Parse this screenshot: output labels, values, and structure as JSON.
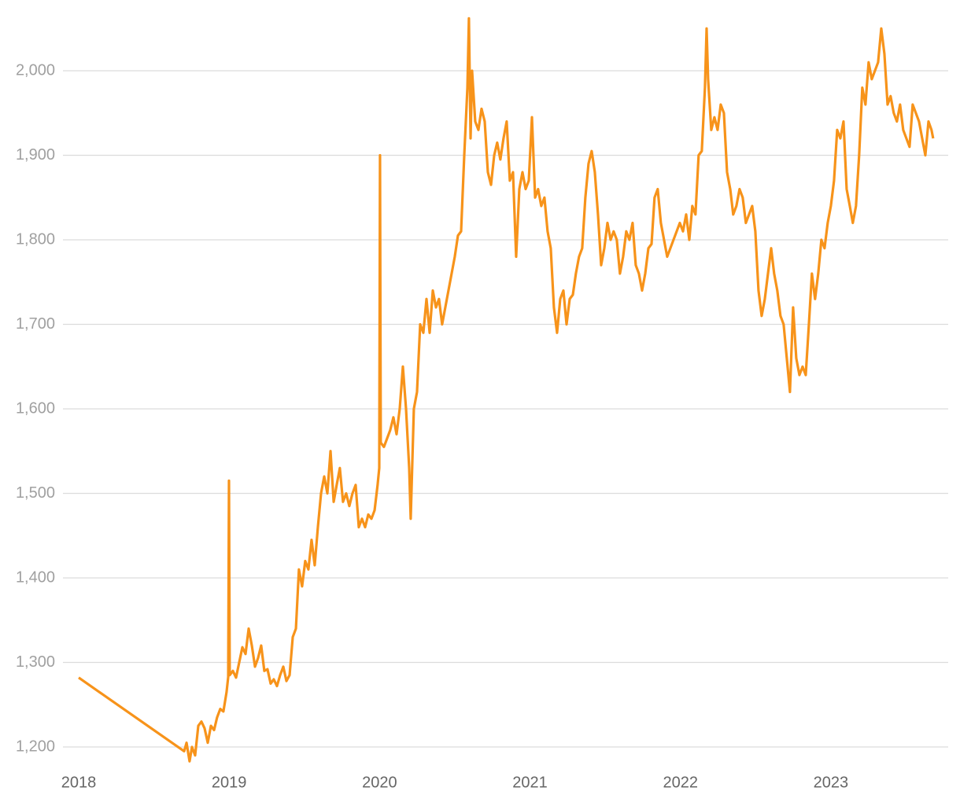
{
  "chart_data": {
    "type": "line",
    "x": [
      2018.0,
      2018.701,
      2018.717,
      2018.737,
      2018.753,
      2018.774,
      2018.795,
      2018.816,
      2018.837,
      2018.858,
      2018.879,
      2018.9,
      2018.92,
      2018.941,
      2018.962,
      2018.983,
      2018.994,
      2018.999,
      2019.004,
      2019.025,
      2019.046,
      2019.067,
      2019.088,
      2019.109,
      2019.13,
      2019.151,
      2019.172,
      2019.192,
      2019.213,
      2019.234,
      2019.255,
      2019.276,
      2019.297,
      2019.318,
      2019.339,
      2019.36,
      2019.381,
      2019.402,
      2019.423,
      2019.444,
      2019.464,
      2019.485,
      2019.506,
      2019.527,
      2019.548,
      2019.569,
      2019.59,
      2019.611,
      2019.632,
      2019.653,
      2019.674,
      2019.695,
      2019.715,
      2019.736,
      2019.757,
      2019.778,
      2019.799,
      2019.82,
      2019.841,
      2019.862,
      2019.883,
      2019.904,
      2019.925,
      2019.946,
      2019.967,
      2019.987,
      2019.998,
      2020.003,
      2020.008,
      2020.029,
      2020.05,
      2020.071,
      2020.092,
      2020.113,
      2020.134,
      2020.155,
      2020.176,
      2020.197,
      2020.207,
      2020.228,
      2020.249,
      2020.27,
      2020.291,
      2020.312,
      2020.333,
      2020.354,
      2020.375,
      2020.395,
      2020.416,
      2020.437,
      2020.458,
      2020.479,
      2020.5,
      2020.521,
      2020.542,
      2020.563,
      2020.584,
      2020.594,
      2020.605,
      2020.615,
      2020.636,
      2020.657,
      2020.678,
      2020.699,
      2020.72,
      2020.741,
      2020.762,
      2020.782,
      2020.803,
      2020.824,
      2020.845,
      2020.866,
      2020.887,
      2020.908,
      2020.929,
      2020.95,
      2020.971,
      2020.992,
      2021.013,
      2021.034,
      2021.054,
      2021.075,
      2021.096,
      2021.117,
      2021.138,
      2021.159,
      2021.18,
      2021.201,
      2021.222,
      2021.243,
      2021.264,
      2021.285,
      2021.305,
      2021.326,
      2021.347,
      2021.368,
      2021.389,
      2021.41,
      2021.431,
      2021.452,
      2021.473,
      2021.494,
      2021.515,
      2021.536,
      2021.556,
      2021.577,
      2021.598,
      2021.619,
      2021.64,
      2021.661,
      2021.682,
      2021.703,
      2021.724,
      2021.745,
      2021.766,
      2021.787,
      2021.808,
      2021.828,
      2021.849,
      2021.87,
      2021.891,
      2021.912,
      2021.933,
      2021.954,
      2021.975,
      2021.996,
      2022.017,
      2022.038,
      2022.059,
      2022.079,
      2022.1,
      2022.121,
      2022.142,
      2022.163,
      2022.174,
      2022.184,
      2022.205,
      2022.226,
      2022.247,
      2022.268,
      2022.289,
      2022.31,
      2022.331,
      2022.351,
      2022.372,
      2022.393,
      2022.414,
      2022.435,
      2022.456,
      2022.477,
      2022.498,
      2022.519,
      2022.54,
      2022.561,
      2022.582,
      2022.603,
      2022.623,
      2022.644,
      2022.665,
      2022.686,
      2022.707,
      2022.728,
      2022.749,
      2022.77,
      2022.791,
      2022.812,
      2022.833,
      2022.854,
      2022.874,
      2022.895,
      2022.916,
      2022.937,
      2022.958,
      2022.979,
      2023.0,
      2023.021,
      2023.042,
      2023.063,
      2023.084,
      2023.105,
      2023.126,
      2023.146,
      2023.167,
      2023.188,
      2023.209,
      2023.23,
      2023.251,
      2023.272,
      2023.293,
      2023.314,
      2023.335,
      2023.356,
      2023.377,
      2023.397,
      2023.418,
      2023.439,
      2023.46,
      2023.481,
      2023.502,
      2023.523,
      2023.544,
      2023.565,
      2023.586,
      2023.607,
      2023.628,
      2023.649,
      2023.669,
      2023.68
    ],
    "series": [
      {
        "color": "#f7931a",
        "values": [
          1282,
          1195,
          1205,
          1183,
          1200,
          1190,
          1225,
          1230,
          1222,
          1205,
          1225,
          1220,
          1235,
          1245,
          1242,
          1265,
          1283,
          1515,
          1285,
          1290,
          1282,
          1300,
          1318,
          1310,
          1340,
          1320,
          1295,
          1305,
          1320,
          1290,
          1292,
          1275,
          1280,
          1272,
          1285,
          1295,
          1278,
          1285,
          1330,
          1340,
          1410,
          1390,
          1420,
          1410,
          1445,
          1415,
          1460,
          1500,
          1520,
          1500,
          1550,
          1490,
          1510,
          1530,
          1490,
          1500,
          1485,
          1500,
          1510,
          1460,
          1470,
          1460,
          1475,
          1470,
          1480,
          1510,
          1530,
          1900,
          1560,
          1555,
          1565,
          1575,
          1590,
          1570,
          1600,
          1650,
          1600,
          1530,
          1470,
          1600,
          1620,
          1700,
          1690,
          1730,
          1690,
          1740,
          1720,
          1730,
          1700,
          1720,
          1740,
          1760,
          1780,
          1805,
          1810,
          1900,
          1980,
          2062,
          1920,
          2000,
          1940,
          1930,
          1955,
          1940,
          1880,
          1865,
          1900,
          1915,
          1895,
          1920,
          1940,
          1870,
          1880,
          1780,
          1860,
          1880,
          1860,
          1870,
          1945,
          1850,
          1860,
          1840,
          1850,
          1810,
          1790,
          1720,
          1690,
          1730,
          1740,
          1700,
          1730,
          1735,
          1760,
          1780,
          1790,
          1850,
          1890,
          1905,
          1880,
          1830,
          1770,
          1790,
          1820,
          1800,
          1810,
          1800,
          1760,
          1780,
          1810,
          1800,
          1820,
          1770,
          1760,
          1740,
          1760,
          1790,
          1795,
          1850,
          1860,
          1820,
          1800,
          1780,
          1790,
          1800,
          1810,
          1820,
          1810,
          1830,
          1800,
          1840,
          1830,
          1900,
          1905,
          1980,
          2050,
          1990,
          1930,
          1945,
          1930,
          1960,
          1950,
          1880,
          1860,
          1830,
          1840,
          1860,
          1850,
          1820,
          1830,
          1840,
          1810,
          1740,
          1710,
          1730,
          1760,
          1790,
          1760,
          1740,
          1710,
          1700,
          1660,
          1620,
          1720,
          1660,
          1640,
          1650,
          1640,
          1700,
          1760,
          1730,
          1760,
          1800,
          1790,
          1820,
          1840,
          1870,
          1930,
          1920,
          1940,
          1860,
          1840,
          1820,
          1840,
          1900,
          1980,
          1960,
          2010,
          1990,
          2000,
          2010,
          2050,
          2020,
          1960,
          1970,
          1950,
          1940,
          1960,
          1930,
          1920,
          1910,
          1960,
          1950,
          1940,
          1920,
          1900,
          1940,
          1930,
          1920
        ]
      }
    ],
    "xlim": [
      2018,
      2023.78
    ],
    "xticks": [
      2018,
      2019,
      2020,
      2021,
      2022,
      2023
    ],
    "ylim": [
      1180,
      2060
    ],
    "yticks": [
      {
        "value": 1200,
        "label": "1,200"
      },
      {
        "value": 1300,
        "label": "1,300"
      },
      {
        "value": 1400,
        "label": "1,400"
      },
      {
        "value": 1500,
        "label": "1,500"
      },
      {
        "value": 1600,
        "label": "1,600"
      },
      {
        "value": 1700,
        "label": "1,700"
      },
      {
        "value": 1800,
        "label": "1,800"
      },
      {
        "value": 1900,
        "label": "1,900"
      },
      {
        "value": 2000,
        "label": "2,000"
      }
    ],
    "grid": true
  }
}
